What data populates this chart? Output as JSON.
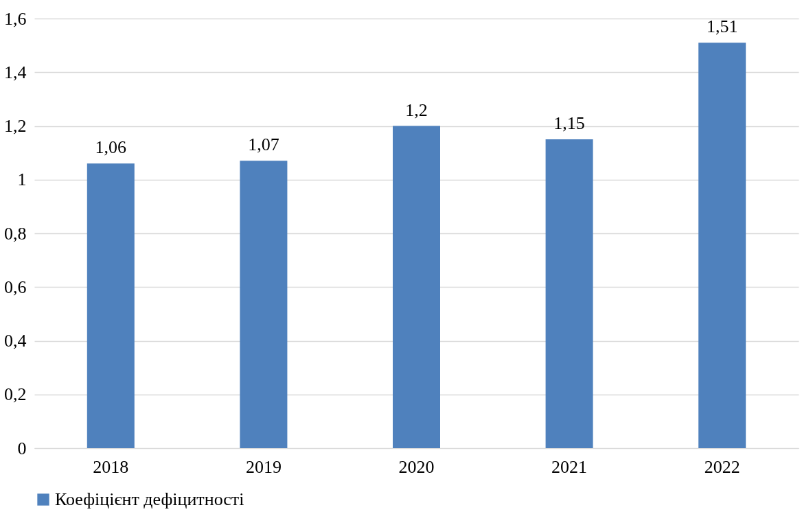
{
  "chart_data": {
    "type": "bar",
    "categories": [
      "2018",
      "2019",
      "2020",
      "2021",
      "2022"
    ],
    "series": [
      {
        "name": "Коефіцієнт дефіцитності",
        "color": "#4f81bd",
        "values": [
          1.06,
          1.07,
          1.2,
          1.15,
          1.51
        ],
        "value_labels": [
          "1,06",
          "1,07",
          "1,2",
          "1,15",
          "1,51"
        ]
      }
    ],
    "ylim": [
      0,
      1.6
    ],
    "yticks": [
      0,
      {
        "value": 0.2,
        "label": "0,2"
      },
      {
        "value": 0.4,
        "label": "0,4"
      },
      {
        "value": 0.6,
        "label": "0,6"
      },
      {
        "value": 0.8,
        "label": "0,8"
      },
      1,
      {
        "value": 1.2,
        "label": "1,2"
      },
      {
        "value": 1.4,
        "label": "1,4"
      },
      {
        "value": 1.6,
        "label": "1,6"
      }
    ],
    "grid": "y",
    "legend": "bottom"
  }
}
